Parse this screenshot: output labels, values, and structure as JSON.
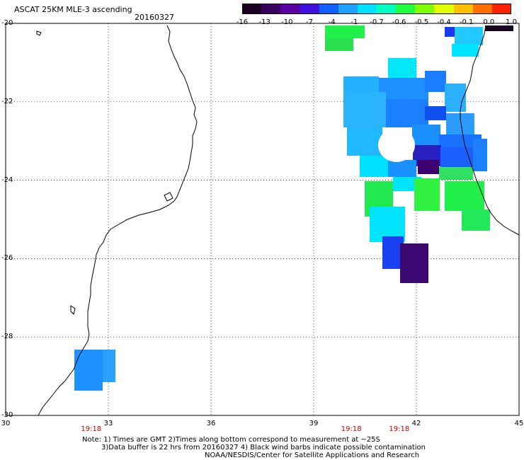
{
  "header": {
    "title": "ASCAT 25KM MLE-3 ascending",
    "date": "20160327"
  },
  "colorbar": {
    "labels": [
      "-16",
      "-13",
      "-10",
      "-7",
      "-4",
      "-1",
      "-0.7",
      "-0.6",
      "-0.5",
      "-0.4",
      "-0.1",
      "0.0",
      "1.0"
    ],
    "colors": [
      "#1a0020",
      "#3a0060",
      "#5a00a0",
      "#4010e0",
      "#1060ff",
      "#20a0ff",
      "#00e0ff",
      "#00ffc0",
      "#20ff40",
      "#80ff00",
      "#e0ff00",
      "#ffc000",
      "#ff7000",
      "#ff2000"
    ]
  },
  "axes": {
    "lat_labels": [
      "-20",
      "-22",
      "-24",
      "-26",
      "-28",
      "-30"
    ],
    "lon_labels": [
      "30",
      "33",
      "36",
      "39",
      "42",
      "45"
    ],
    "lat_range": [
      -30,
      -20
    ],
    "lon_range": [
      30,
      45
    ],
    "grid": "dotted"
  },
  "time_labels": [
    {
      "text": "19:18",
      "lon": 32.5
    },
    {
      "text": "19:18",
      "lon": 40.1
    },
    {
      "text": "19:18",
      "lon": 41.5
    }
  ],
  "notes": {
    "line1": "Note: 1) Times are GMT 2)Times along bottom correspond to measurement at ~25S",
    "line2": "3)Data buffer is 22 hrs from 20160327 4) Black wind barbs indicate possible contamination",
    "line3": "NOAA/NESDIS/Center for Satellite Applications and Research"
  }
}
